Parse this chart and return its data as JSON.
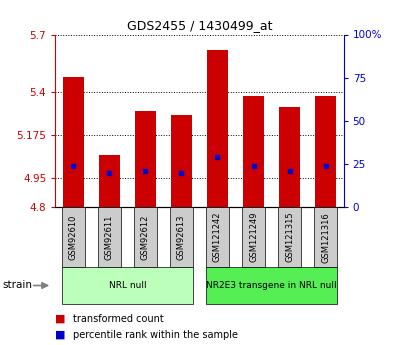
{
  "title": "GDS2455 / 1430499_at",
  "samples": [
    "GSM92610",
    "GSM92611",
    "GSM92612",
    "GSM92613",
    "GSM121242",
    "GSM121249",
    "GSM121315",
    "GSM121316"
  ],
  "transformed_counts": [
    5.48,
    5.07,
    5.3,
    5.28,
    5.62,
    5.38,
    5.32,
    5.38
  ],
  "percentile_ranks": [
    24,
    20,
    21,
    20,
    29,
    24,
    21,
    24
  ],
  "ylim_left": [
    4.8,
    5.7
  ],
  "ylim_right": [
    0,
    100
  ],
  "yticks_left": [
    4.8,
    4.95,
    5.175,
    5.4,
    5.7
  ],
  "ytick_labels_left": [
    "4.8",
    "4.95",
    "5.175",
    "5.4",
    "5.7"
  ],
  "yticks_right": [
    0,
    25,
    50,
    75,
    100
  ],
  "ytick_labels_right": [
    "0",
    "25",
    "50",
    "75",
    "100%"
  ],
  "bar_color": "#cc0000",
  "dot_color": "#0000cc",
  "bar_bottom": 4.8,
  "groups": [
    {
      "label": "NRL null",
      "start": 0,
      "end": 3,
      "color": "#bbffbb"
    },
    {
      "label": "NR2E3 transgene in NRL null",
      "start": 4,
      "end": 7,
      "color": "#55ee55"
    }
  ],
  "strain_label": "strain",
  "legend_items": [
    {
      "color": "#cc0000",
      "label": "transformed count"
    },
    {
      "color": "#0000cc",
      "label": "percentile rank within the sample"
    }
  ],
  "tick_box_color": "#cccccc",
  "grid_color": "#000000",
  "bar_width": 0.6
}
